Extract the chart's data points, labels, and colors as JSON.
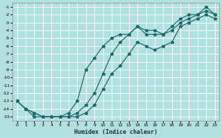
{
  "xlabel": "Humidex (Indice chaleur)",
  "ylabel": "",
  "bg_color": "#b2dfdf",
  "grid_color": "#c8e8e8",
  "line_color": "#1a6b6b",
  "xlim": [
    -0.5,
    23.5
  ],
  "ylim": [
    -15.5,
    -0.5
  ],
  "yticks": [
    -1,
    -2,
    -3,
    -4,
    -5,
    -6,
    -7,
    -8,
    -9,
    -10,
    -11,
    -12,
    -13,
    -14,
    -15
  ],
  "xticks": [
    0,
    1,
    2,
    3,
    4,
    5,
    6,
    7,
    8,
    9,
    10,
    11,
    12,
    13,
    14,
    15,
    16,
    17,
    18,
    19,
    20,
    21,
    22,
    23
  ],
  "line1_x": [
    0,
    1,
    2,
    3,
    4,
    5,
    6,
    7,
    8,
    9,
    10,
    11,
    12,
    13,
    14,
    15,
    16,
    17,
    18,
    19,
    20,
    21,
    22,
    23
  ],
  "line1_y": [
    -13.0,
    -14.0,
    -14.5,
    -15.0,
    -15.0,
    -15.0,
    -15.0,
    -14.5,
    -13.5,
    -12.0,
    -9.5,
    -7.0,
    -5.5,
    -4.5,
    -3.5,
    -4.5,
    -4.5,
    -4.5,
    -4.0,
    -3.0,
    -2.5,
    -2.0,
    -1.5,
    -2.0
  ],
  "line2_x": [
    0,
    1,
    2,
    3,
    4,
    5,
    6,
    7,
    8,
    9,
    10,
    11,
    12,
    13,
    14,
    15,
    16,
    17,
    18,
    19,
    20,
    21,
    22,
    23
  ],
  "line2_y": [
    -13.0,
    -14.0,
    -14.5,
    -15.0,
    -15.0,
    -15.0,
    -14.5,
    -13.0,
    -9.0,
    -7.5,
    -6.0,
    -5.0,
    -4.5,
    -4.5,
    -3.5,
    -4.0,
    -4.0,
    -4.5,
    -3.5,
    -2.5,
    -2.0,
    -2.0,
    -1.0,
    -2.0
  ],
  "line3_x": [
    0,
    1,
    2,
    3,
    4,
    5,
    6,
    7,
    8,
    9,
    10,
    11,
    12,
    13,
    14,
    15,
    16,
    17,
    18,
    19,
    20,
    21,
    22,
    23
  ],
  "line3_y": [
    -13.0,
    -14.0,
    -15.0,
    -15.0,
    -15.0,
    -15.0,
    -15.0,
    -15.0,
    -14.5,
    -13.5,
    -11.5,
    -9.5,
    -8.5,
    -7.0,
    -5.5,
    -6.0,
    -6.5,
    -6.0,
    -5.5,
    -3.5,
    -3.0,
    -2.5,
    -2.0,
    -2.5
  ]
}
